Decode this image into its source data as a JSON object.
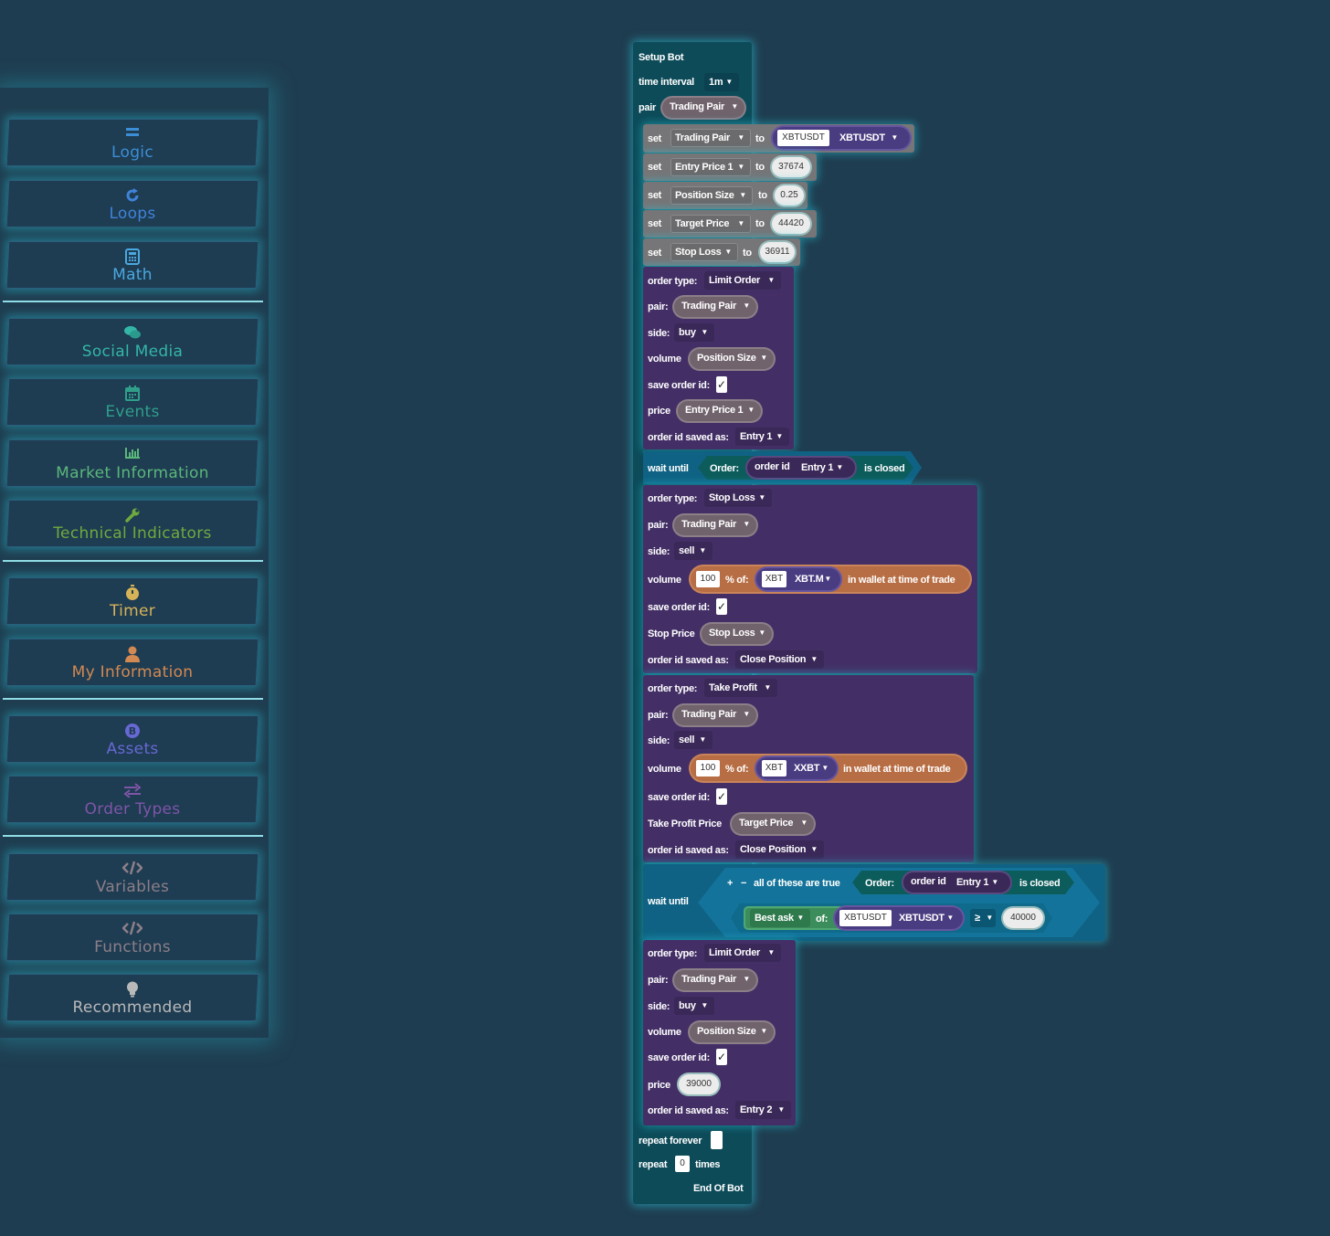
{
  "toolbox": {
    "categories": [
      {
        "label": "Logic",
        "icon": "logic-icon",
        "color": "#3c8fd6"
      },
      {
        "label": "Loops",
        "icon": "loop-arrow-icon",
        "color": "#3f83d9"
      },
      {
        "label": "Math",
        "icon": "calculator-icon",
        "color": "#4aa8e0"
      },
      {
        "label": "Social Media",
        "icon": "chat-bubbles-icon",
        "color": "#34b6a6"
      },
      {
        "label": "Events",
        "icon": "calendar-icon",
        "color": "#2f9f8a"
      },
      {
        "label": "Market Information",
        "icon": "bar-chart-icon",
        "color": "#5bb77a"
      },
      {
        "label": "Technical Indicators",
        "icon": "wrench-icon",
        "color": "#6faa3e"
      },
      {
        "label": "Timer",
        "icon": "stopwatch-icon",
        "color": "#d7b358"
      },
      {
        "label": "My Information",
        "icon": "user-icon",
        "color": "#d28952"
      },
      {
        "label": "Assets",
        "icon": "bitcoin-icon",
        "color": "#6868d4"
      },
      {
        "label": "Order Types",
        "icon": "swap-arrows-icon",
        "color": "#7f55a8"
      },
      {
        "label": "Variables",
        "icon": "code-icon",
        "color": "#8c7f88"
      },
      {
        "label": "Functions",
        "icon": "code-icon",
        "color": "#8c7f88"
      },
      {
        "label": "Recommended",
        "icon": "lightbulb-icon",
        "color": "#b9b9b9"
      }
    ]
  },
  "bot": {
    "title": "Setup Bot",
    "time_interval_label": "time interval",
    "time_interval_value": "1m",
    "pair_label": "pair",
    "pair_value": "Trading Pair",
    "set_label": "set",
    "to_label": "to",
    "sets": [
      {
        "var": "Trading Pair",
        "value": "XBTUSDT",
        "value2": "XBTUSDT"
      },
      {
        "var": "Entry Price 1",
        "value": "37674"
      },
      {
        "var": "Position Size",
        "value": "0.25"
      },
      {
        "var": "Target Price",
        "value": "44420"
      },
      {
        "var": "Stop Loss",
        "value": "36911"
      }
    ],
    "labels": {
      "order_type": "order type:",
      "pair": "pair:",
      "side": "side:",
      "volume": "volume",
      "save_order_id": "save order id:",
      "price": "price",
      "order_id_saved_as": "order id saved as:",
      "wait_until": "wait until",
      "order": "Order:",
      "order_id": "order id",
      "is_closed": "is closed",
      "pct_of": "% of:",
      "in_wallet": "in wallet at time of trade",
      "stop_price": "Stop Price",
      "take_profit_price": "Take Profit Price",
      "all_true": "all of these are true",
      "of": "of:",
      "plus": "+",
      "minus": "−"
    },
    "check": "✓",
    "order1": {
      "type": "Limit Order",
      "pair": "Trading Pair",
      "side": "buy",
      "volume": "Position Size",
      "price": "Entry Price 1",
      "saved_as": "Entry 1"
    },
    "wait1": {
      "entry": "Entry 1"
    },
    "order2": {
      "type": "Stop Loss",
      "pair": "Trading Pair",
      "side": "sell",
      "pct": "100",
      "asset": "XBT",
      "asset2": "XBT.M",
      "stop_price": "Stop Loss",
      "saved_as": "Close Position"
    },
    "order3": {
      "type": "Take Profit",
      "pair": "Trading Pair",
      "side": "sell",
      "pct": "100",
      "asset": "XBT",
      "asset2": "XXBT",
      "tp_price": "Target Price",
      "saved_as": "Close Position"
    },
    "wait2": {
      "entry": "Entry 1",
      "metric": "Best ask",
      "pair": "XBTUSDT",
      "pair2": "XBTUSDT",
      "op": "≥",
      "value": "40000"
    },
    "order4": {
      "type": "Limit Order",
      "pair": "Trading Pair",
      "side": "buy",
      "volume": "Position Size",
      "price": "39000",
      "saved_as": "Entry 2"
    },
    "repeat_forever": "repeat forever",
    "repeat": "repeat",
    "repeat_times": "0",
    "times": "times",
    "end": "End Of Bot",
    "arrow": "▼"
  }
}
